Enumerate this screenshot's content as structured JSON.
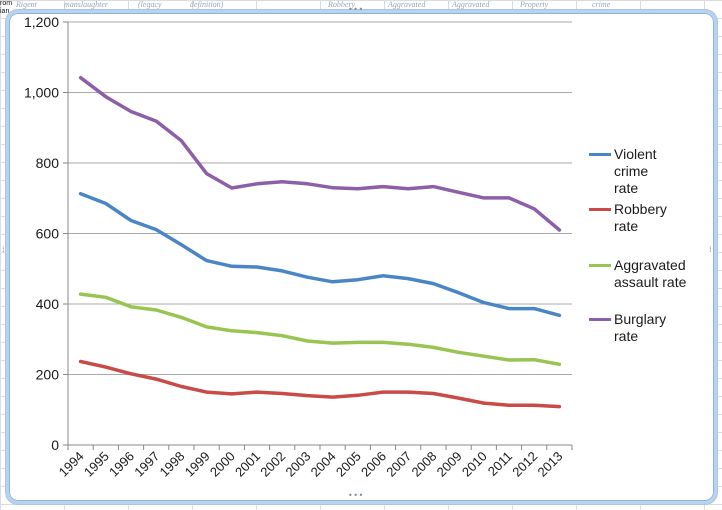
{
  "sheet": {
    "header_fragments": [
      "Rigent",
      "manslaughter",
      "(legacy",
      "definition)",
      "Robbery",
      "Aggravated",
      "Aggravated",
      "Property",
      "crime"
    ],
    "left_fragments": [
      "rom",
      "ian"
    ]
  },
  "chart_data": {
    "type": "line",
    "title": "",
    "xlabel": "",
    "ylabel": "",
    "categories": [
      "1994",
      "1995",
      "1996",
      "1997",
      "1998",
      "1999",
      "2000",
      "2001",
      "2002",
      "2003",
      "2004",
      "2005",
      "2006",
      "2007",
      "2008",
      "2009",
      "2010",
      "2011",
      "2012",
      "2013"
    ],
    "ylim": [
      0,
      1200
    ],
    "yticks": [
      0,
      200,
      400,
      600,
      800,
      1000,
      1200
    ],
    "ytick_labels": [
      "0",
      "200",
      "400",
      "600",
      "800",
      "1,000",
      "1,200"
    ],
    "grid": true,
    "legend_position": "right",
    "series": [
      {
        "name": "Violent crime rate",
        "color": "#4a86c5",
        "values": [
          713,
          685,
          637,
          611,
          568,
          523,
          507,
          505,
          494,
          476,
          463,
          469,
          480,
          472,
          458,
          432,
          404,
          387,
          387,
          368
        ]
      },
      {
        "name": "Robbery rate",
        "color": "#c94a47",
        "values": [
          237,
          221,
          202,
          187,
          166,
          150,
          145,
          150,
          146,
          140,
          136,
          141,
          150,
          150,
          146,
          133,
          119,
          113,
          113,
          109
        ]
      },
      {
        "name": "Aggravated assault rate",
        "color": "#98c451",
        "values": [
          428,
          419,
          392,
          383,
          362,
          335,
          324,
          319,
          310,
          295,
          289,
          291,
          291,
          286,
          277,
          263,
          252,
          241,
          242,
          229
        ]
      },
      {
        "name": "Burglary rate",
        "color": "#8c5fa8",
        "values": [
          1042,
          988,
          946,
          919,
          863,
          770,
          729,
          741,
          747,
          741,
          730,
          727,
          733,
          727,
          733,
          717,
          701,
          701,
          670,
          610
        ]
      }
    ],
    "legend_lines": [
      [
        "Violent",
        "crime",
        "rate"
      ],
      [
        "Robbery",
        "rate"
      ],
      [
        "Aggravated",
        "assault rate"
      ],
      [
        "Burglary",
        "rate"
      ]
    ]
  }
}
